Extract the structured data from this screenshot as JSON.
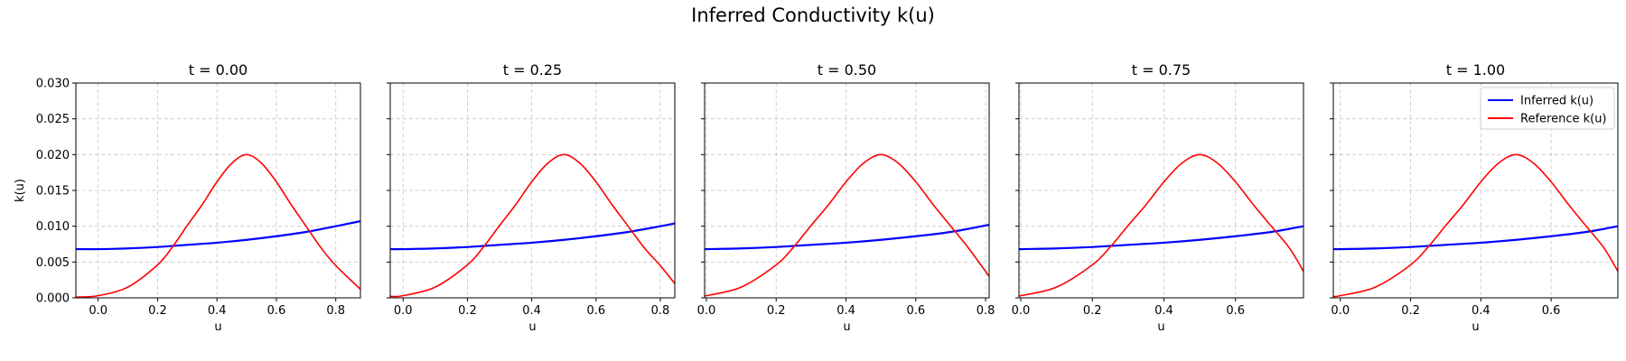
{
  "figure": {
    "title": "Inferred Conductivity k(u)"
  },
  "colors": {
    "inferred": "#0000ff",
    "reference": "#ff0000",
    "grid": "#b0b0b0"
  },
  "legend": {
    "placement": "top-right",
    "panel_index": 4,
    "entries": [
      {
        "label": "Inferred k(u)",
        "color": "#0000ff"
      },
      {
        "label": "Reference k(u)",
        "color": "#ff0000"
      }
    ]
  },
  "chart_data": [
    {
      "type": "line",
      "title": "t = 0.00",
      "xlabel": "u",
      "ylabel": "k(u)",
      "xlim": [
        -0.075,
        0.883
      ],
      "ylim": [
        0,
        0.03
      ],
      "xticks": [
        "0.0",
        "0.2",
        "0.4",
        "0.6",
        "0.8"
      ],
      "yticks": [
        "0.000",
        "0.005",
        "0.010",
        "0.015",
        "0.020",
        "0.025",
        "0.030"
      ],
      "grid": true,
      "series": [
        {
          "name": "Inferred k(u)",
          "x": [
            -0.075,
            0.0,
            0.1,
            0.2,
            0.3,
            0.4,
            0.5,
            0.6,
            0.7,
            0.8,
            0.883
          ],
          "y": [
            0.0068,
            0.0068,
            0.0069,
            0.0071,
            0.0074,
            0.0077,
            0.0081,
            0.0086,
            0.0092,
            0.01,
            0.0107
          ]
        },
        {
          "name": "Reference k(u)",
          "x": [
            -0.075,
            0.0,
            0.1,
            0.2,
            0.25,
            0.3,
            0.35,
            0.4,
            0.45,
            0.5,
            0.55,
            0.6,
            0.65,
            0.7,
            0.75,
            0.8,
            0.883
          ],
          "y": [
            0.0001,
            0.0003,
            0.0015,
            0.0046,
            0.0071,
            0.0101,
            0.013,
            0.0162,
            0.0188,
            0.02,
            0.0188,
            0.0162,
            0.013,
            0.01,
            0.007,
            0.0045,
            0.0012
          ]
        }
      ]
    },
    {
      "type": "line",
      "title": "t = 0.25",
      "xlabel": "u",
      "ylabel": "",
      "xlim": [
        -0.04,
        0.845
      ],
      "ylim": [
        0,
        0.03
      ],
      "xticks": [
        "0.0",
        "0.2",
        "0.4",
        "0.6",
        "0.8"
      ],
      "yticks": [],
      "grid": true,
      "series": [
        {
          "name": "Inferred k(u)",
          "x": [
            -0.04,
            0.0,
            0.1,
            0.2,
            0.3,
            0.4,
            0.5,
            0.6,
            0.7,
            0.8,
            0.845
          ],
          "y": [
            0.0068,
            0.0068,
            0.0069,
            0.0071,
            0.0074,
            0.0077,
            0.0081,
            0.0086,
            0.0092,
            0.01,
            0.0104
          ]
        },
        {
          "name": "Reference k(u)",
          "x": [
            -0.04,
            0.0,
            0.1,
            0.2,
            0.25,
            0.3,
            0.35,
            0.4,
            0.45,
            0.5,
            0.55,
            0.6,
            0.65,
            0.7,
            0.75,
            0.8,
            0.845
          ],
          "y": [
            0.0002,
            0.0003,
            0.0015,
            0.0046,
            0.0071,
            0.0101,
            0.013,
            0.0162,
            0.0188,
            0.02,
            0.0188,
            0.0162,
            0.013,
            0.01,
            0.007,
            0.0045,
            0.002
          ]
        }
      ]
    },
    {
      "type": "line",
      "title": "t = 0.50",
      "xlabel": "u",
      "ylabel": "",
      "xlim": [
        -0.005,
        0.81
      ],
      "ylim": [
        0,
        0.03
      ],
      "xticks": [
        "0.0",
        "0.2",
        "0.4",
        "0.6",
        "0.8"
      ],
      "yticks": [],
      "grid": true,
      "series": [
        {
          "name": "Inferred k(u)",
          "x": [
            -0.005,
            0.0,
            0.1,
            0.2,
            0.3,
            0.4,
            0.5,
            0.6,
            0.7,
            0.81
          ],
          "y": [
            0.0068,
            0.0068,
            0.0069,
            0.0071,
            0.0074,
            0.0077,
            0.0081,
            0.0086,
            0.0092,
            0.0102
          ]
        },
        {
          "name": "Reference k(u)",
          "x": [
            -0.005,
            0.0,
            0.1,
            0.2,
            0.25,
            0.3,
            0.35,
            0.4,
            0.45,
            0.5,
            0.55,
            0.6,
            0.65,
            0.7,
            0.75,
            0.81
          ],
          "y": [
            0.0003,
            0.0003,
            0.0015,
            0.0046,
            0.0071,
            0.0101,
            0.013,
            0.0162,
            0.0188,
            0.02,
            0.0188,
            0.0162,
            0.013,
            0.01,
            0.007,
            0.003
          ]
        }
      ]
    },
    {
      "type": "line",
      "title": "t = 0.75",
      "xlabel": "u",
      "ylabel": "",
      "xlim": [
        -0.005,
        0.79
      ],
      "ylim": [
        0,
        0.03
      ],
      "xticks": [
        "0.0",
        "0.2",
        "0.4",
        "0.6"
      ],
      "yticks": [],
      "grid": true,
      "series": [
        {
          "name": "Inferred k(u)",
          "x": [
            -0.005,
            0.0,
            0.1,
            0.2,
            0.3,
            0.4,
            0.5,
            0.6,
            0.7,
            0.79
          ],
          "y": [
            0.0068,
            0.0068,
            0.0069,
            0.0071,
            0.0074,
            0.0077,
            0.0081,
            0.0086,
            0.0092,
            0.01
          ]
        },
        {
          "name": "Reference k(u)",
          "x": [
            -0.005,
            0.0,
            0.1,
            0.2,
            0.25,
            0.3,
            0.35,
            0.4,
            0.45,
            0.5,
            0.55,
            0.6,
            0.65,
            0.7,
            0.75,
            0.79
          ],
          "y": [
            0.0003,
            0.0003,
            0.0015,
            0.0046,
            0.0071,
            0.0101,
            0.013,
            0.0162,
            0.0188,
            0.02,
            0.0188,
            0.0162,
            0.013,
            0.01,
            0.007,
            0.0037
          ]
        }
      ]
    },
    {
      "type": "line",
      "title": "t = 1.00",
      "xlabel": "u",
      "ylabel": "",
      "xlim": [
        -0.02,
        0.79
      ],
      "ylim": [
        0,
        0.03
      ],
      "xticks": [
        "0.0",
        "0.2",
        "0.4",
        "0.6"
      ],
      "yticks": [],
      "grid": true,
      "series": [
        {
          "name": "Inferred k(u)",
          "x": [
            -0.02,
            0.0,
            0.1,
            0.2,
            0.3,
            0.4,
            0.5,
            0.6,
            0.7,
            0.79
          ],
          "y": [
            0.0068,
            0.0068,
            0.0069,
            0.0071,
            0.0074,
            0.0077,
            0.0081,
            0.0086,
            0.0092,
            0.01
          ]
        },
        {
          "name": "Reference k(u)",
          "x": [
            -0.02,
            0.0,
            0.1,
            0.2,
            0.25,
            0.3,
            0.35,
            0.4,
            0.45,
            0.5,
            0.55,
            0.6,
            0.65,
            0.7,
            0.75,
            0.79
          ],
          "y": [
            0.0002,
            0.0003,
            0.0015,
            0.0046,
            0.0071,
            0.0101,
            0.013,
            0.0162,
            0.0188,
            0.02,
            0.0188,
            0.0162,
            0.013,
            0.01,
            0.007,
            0.0037
          ]
        }
      ]
    }
  ]
}
